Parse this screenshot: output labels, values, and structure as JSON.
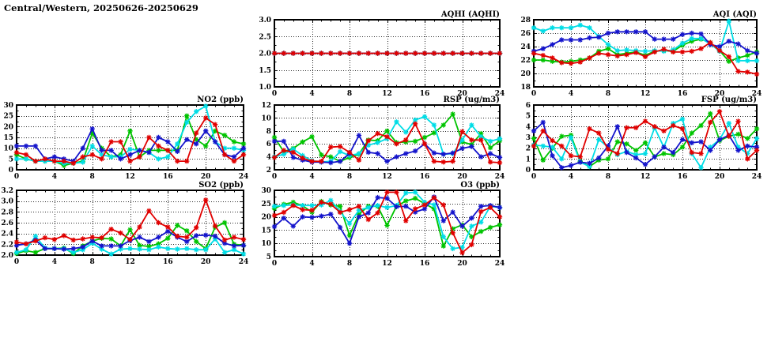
{
  "page": {
    "title": "Central/Western, 20250626-20250629"
  },
  "colors": {
    "red": "#e10000",
    "green": "#00c400",
    "blue": "#1414cc",
    "cyan": "#00dde6",
    "grid": "#2a2a2a",
    "text": "#000000",
    "background": "#ffffff"
  },
  "hours": [
    0,
    1,
    2,
    3,
    4,
    5,
    6,
    7,
    8,
    9,
    10,
    11,
    12,
    13,
    14,
    15,
    16,
    17,
    18,
    19,
    20,
    21,
    22,
    23,
    24
  ],
  "chart_data": [
    {
      "id": "aqhi",
      "type": "line",
      "title": "AQHI (AQHI)",
      "xlabel": "",
      "ylabel": "",
      "grid": true,
      "legend": "none",
      "marker": "asterisk",
      "xlim": [
        0,
        24
      ],
      "xticks": [
        0,
        4,
        8,
        12,
        16,
        20,
        24
      ],
      "xtick_minor_step": 1,
      "ylim": [
        1.0,
        3.0
      ],
      "ytick_step": 0.5,
      "ytick_decimals": 1,
      "series": [
        {
          "name": "green",
          "color": "green",
          "values": [
            2,
            2,
            2,
            2,
            2,
            2,
            2,
            2,
            2,
            2,
            2,
            2,
            2,
            2,
            2,
            2,
            2,
            2,
            2,
            2,
            2,
            2,
            2,
            2,
            2
          ]
        },
        {
          "name": "cyan",
          "color": "cyan",
          "values": [
            2,
            2,
            2,
            2,
            2,
            2,
            2,
            2,
            2,
            2,
            2,
            2,
            2,
            2,
            2,
            2,
            2,
            2,
            2,
            2,
            2,
            2,
            2,
            2,
            2
          ]
        },
        {
          "name": "blue",
          "color": "blue",
          "values": [
            2,
            2,
            2,
            2,
            2,
            2,
            2,
            2,
            2,
            2,
            2,
            2,
            2,
            2,
            2,
            2,
            2,
            2,
            2,
            2,
            2,
            2,
            2,
            2,
            2
          ]
        },
        {
          "name": "red",
          "color": "red",
          "values": [
            2,
            2,
            2,
            2,
            2,
            2,
            2,
            2,
            2,
            2,
            2,
            2,
            2,
            2,
            2,
            2,
            2,
            2,
            2,
            2,
            2,
            2,
            2,
            2,
            2
          ]
        }
      ]
    },
    {
      "id": "aqi",
      "type": "line",
      "title": "AQI (AQI)",
      "xlabel": "",
      "ylabel": "",
      "grid": true,
      "legend": "none",
      "marker": "asterisk",
      "xlim": [
        0,
        24
      ],
      "xticks": [
        0,
        4,
        8,
        12,
        16,
        20,
        24
      ],
      "xtick_minor_step": 1,
      "ylim": [
        18,
        28
      ],
      "ytick_step": 2,
      "ytick_decimals": 0,
      "series": [
        {
          "name": "green",
          "color": "green",
          "values": [
            22.0,
            22.0,
            21.8,
            21.7,
            21.8,
            22.0,
            22.3,
            23.3,
            23.7,
            22.8,
            23.0,
            23.2,
            22.7,
            23.3,
            23.4,
            23.3,
            24.2,
            24.8,
            25.1,
            24.6,
            23.4,
            21.8,
            22.3,
            22.7,
            23.2
          ]
        },
        {
          "name": "cyan",
          "color": "cyan",
          "values": [
            26.8,
            26.3,
            26.8,
            26.8,
            26.8,
            27.2,
            26.8,
            25.5,
            24.3,
            23.4,
            23.5,
            23.4,
            23.3,
            23.4,
            23.3,
            23.5,
            24.5,
            25.2,
            25.2,
            24.4,
            23.3,
            27.8,
            21.9,
            21.9,
            21.9
          ]
        },
        {
          "name": "blue",
          "color": "blue",
          "values": [
            23.3,
            23.7,
            24.3,
            25.0,
            25.0,
            25.0,
            25.3,
            25.4,
            26.0,
            26.2,
            26.2,
            26.2,
            26.2,
            25.1,
            25.1,
            25.1,
            25.8,
            26.0,
            25.9,
            24.3,
            24.0,
            24.8,
            24.4,
            23.4,
            23.0
          ]
        },
        {
          "name": "red",
          "color": "red",
          "values": [
            23.0,
            22.7,
            22.3,
            21.6,
            21.5,
            21.7,
            22.3,
            23.0,
            22.8,
            22.6,
            22.8,
            23.1,
            22.5,
            23.2,
            23.6,
            23.2,
            23.2,
            23.3,
            23.7,
            24.6,
            23.4,
            22.5,
            20.3,
            20.2,
            19.9
          ]
        }
      ]
    },
    {
      "id": "no2",
      "type": "line",
      "title": "NO2 (ppb)",
      "xlabel": "",
      "ylabel": "",
      "grid": true,
      "legend": "none",
      "marker": "asterisk",
      "xlim": [
        0,
        24
      ],
      "xticks": [
        0,
        4,
        8,
        12,
        16,
        20,
        24
      ],
      "xtick_minor_step": 1,
      "ylim": [
        0,
        30
      ],
      "ytick_step": 5,
      "ytick_decimals": 0,
      "series": [
        {
          "name": "green",
          "color": "green",
          "values": [
            7,
            5,
            4,
            4,
            4,
            2,
            3,
            4,
            17,
            10,
            6,
            7,
            18,
            6,
            9,
            9,
            9,
            9,
            25,
            14,
            11,
            18,
            16,
            13,
            12
          ]
        },
        {
          "name": "cyan",
          "color": "cyan",
          "values": [
            5,
            5,
            4,
            4,
            4,
            3,
            3,
            3.5,
            11,
            7,
            6,
            6,
            9.5,
            9,
            8,
            5,
            6,
            12,
            22,
            27,
            29.5,
            13,
            10,
            10,
            9
          ]
        },
        {
          "name": "blue",
          "color": "blue",
          "values": [
            11,
            11,
            11,
            5,
            6,
            5,
            4,
            10,
            19,
            9,
            9,
            5,
            7,
            9,
            8,
            15,
            13,
            8.5,
            14,
            12,
            18,
            13,
            7,
            6,
            10
          ]
        },
        {
          "name": "red",
          "color": "red",
          "values": [
            8,
            7,
            4,
            5,
            4,
            4,
            3,
            6,
            7,
            5,
            13,
            13,
            4,
            6,
            15,
            11,
            9,
            4,
            4,
            17,
            24,
            21,
            7,
            4,
            7
          ]
        }
      ]
    },
    {
      "id": "rsp",
      "type": "line",
      "title": "RSP (ug/m3)",
      "xlabel": "",
      "ylabel": "",
      "grid": true,
      "legend": "none",
      "marker": "asterisk",
      "xlim": [
        0,
        24
      ],
      "xticks": [
        0,
        4,
        8,
        12,
        16,
        20,
        24
      ],
      "xtick_minor_step": 1,
      "ylim": [
        2,
        12
      ],
      "ytick_step": 2,
      "ytick_decimals": 0,
      "series": [
        {
          "name": "green",
          "color": "green",
          "values": [
            7.0,
            4.8,
            5.3,
            6.3,
            7.1,
            4.3,
            4.0,
            3.3,
            3.9,
            4.4,
            6.6,
            6.5,
            8.0,
            6.2,
            6.3,
            6.4,
            7.0,
            7.7,
            8.9,
            10.6,
            6.3,
            5.9,
            7.6,
            5.4,
            6.5
          ]
        },
        {
          "name": "cyan",
          "color": "cyan",
          "values": [
            4.0,
            4.4,
            5.2,
            4.2,
            3.4,
            3.2,
            3.3,
            4.8,
            4.2,
            4.5,
            5.8,
            6.2,
            6.8,
            9.4,
            7.8,
            9.7,
            10.2,
            8.9,
            4.4,
            4.5,
            6.6,
            8.9,
            7.1,
            6.4,
            6.8
          ]
        },
        {
          "name": "blue",
          "color": "blue",
          "values": [
            6.4,
            6.4,
            3.9,
            3.5,
            3.2,
            3.2,
            3.1,
            3.3,
            4.5,
            7.3,
            4.7,
            4.5,
            3.3,
            4.0,
            4.5,
            4.9,
            6.0,
            4.6,
            4.4,
            4.6,
            5.3,
            5.6,
            4.0,
            4.5,
            3.9
          ]
        },
        {
          "name": "red",
          "color": "red",
          "values": [
            3.9,
            5.0,
            4.7,
            3.8,
            3.3,
            3.3,
            5.5,
            5.6,
            4.7,
            3.5,
            6.5,
            7.6,
            7.1,
            6.0,
            6.6,
            9.1,
            6.0,
            3.3,
            3.2,
            3.3,
            7.9,
            6.6,
            6.6,
            3.2,
            3.1
          ]
        }
      ]
    },
    {
      "id": "fsp",
      "type": "line",
      "title": "FSP (ug/m3)",
      "xlabel": "",
      "ylabel": "",
      "grid": true,
      "legend": "none",
      "marker": "asterisk",
      "xlim": [
        0,
        24
      ],
      "xticks": [
        0,
        4,
        8,
        12,
        16,
        20,
        24
      ],
      "xtick_minor_step": 1,
      "ylim": [
        0,
        6
      ],
      "ytick_step": 1,
      "ytick_decimals": 0,
      "series": [
        {
          "name": "green",
          "color": "green",
          "values": [
            2.9,
            0.9,
            2.0,
            3.1,
            3.2,
            0.8,
            0.3,
            0.9,
            1.0,
            2.6,
            2.4,
            1.8,
            2.5,
            1.2,
            1.5,
            1.4,
            2.1,
            3.4,
            4.1,
            5.2,
            2.7,
            3.1,
            3.3,
            2.9,
            3.8
          ]
        },
        {
          "name": "cyan",
          "color": "cyan",
          "values": [
            2.3,
            2.2,
            2.1,
            1.0,
            3.0,
            0.7,
            0.3,
            2.8,
            2.1,
            1.4,
            1.7,
            1.4,
            1.5,
            3.9,
            2.1,
            4.3,
            4.7,
            1.5,
            0.2,
            2.1,
            2.8,
            4.3,
            2.1,
            1.5,
            2.9
          ]
        },
        {
          "name": "blue",
          "color": "blue",
          "values": [
            3.6,
            4.4,
            1.3,
            0.2,
            0.4,
            0.7,
            0.6,
            1.1,
            2.2,
            4.0,
            1.6,
            1.1,
            0.5,
            1.2,
            2.1,
            1.6,
            2.8,
            2.5,
            2.6,
            1.8,
            2.8,
            3.2,
            1.8,
            2.2,
            2.1
          ]
        },
        {
          "name": "red",
          "color": "red",
          "values": [
            2.2,
            3.6,
            2.7,
            2.2,
            1.3,
            1.2,
            3.8,
            3.4,
            1.9,
            1.5,
            3.9,
            3.9,
            4.5,
            4.0,
            3.6,
            4.1,
            3.8,
            1.6,
            1.5,
            4.4,
            5.4,
            3.1,
            4.5,
            1.0,
            1.8
          ]
        }
      ]
    },
    {
      "id": "so2",
      "type": "line",
      "title": "SO2 (ppb)",
      "xlabel": "",
      "ylabel": "",
      "grid": true,
      "legend": "none",
      "marker": "asterisk",
      "xlim": [
        0,
        24
      ],
      "xticks": [
        0,
        4,
        8,
        12,
        16,
        20,
        24
      ],
      "xtick_minor_step": 1,
      "ylim": [
        2.0,
        3.2
      ],
      "ytick_step": 0.2,
      "ytick_decimals": 1,
      "series": [
        {
          "name": "green",
          "color": "green",
          "values": [
            2.03,
            2.08,
            2.05,
            2.12,
            2.12,
            2.13,
            2.03,
            2.17,
            2.26,
            2.31,
            2.3,
            2.17,
            2.47,
            2.18,
            2.16,
            2.21,
            2.31,
            2.55,
            2.45,
            2.25,
            2.12,
            2.52,
            2.6,
            2.2,
            2.18
          ]
        },
        {
          "name": "cyan",
          "color": "cyan",
          "values": [
            2.05,
            2.1,
            2.35,
            2.13,
            2.12,
            2.12,
            2.05,
            2.1,
            2.22,
            2.11,
            2.02,
            2.11,
            2.12,
            2.11,
            2.1,
            2.15,
            2.12,
            2.11,
            2.12,
            2.1,
            2.1,
            2.3,
            2.05,
            2.1,
            2.02
          ]
        },
        {
          "name": "blue",
          "color": "blue",
          "values": [
            2.18,
            2.21,
            2.28,
            2.12,
            2.12,
            2.11,
            2.12,
            2.15,
            2.26,
            2.17,
            2.17,
            2.17,
            2.27,
            2.33,
            2.25,
            2.33,
            2.44,
            2.33,
            2.25,
            2.36,
            2.37,
            2.35,
            2.22,
            2.17,
            2.18
          ]
        },
        {
          "name": "red",
          "color": "red",
          "values": [
            2.24,
            2.21,
            2.26,
            2.32,
            2.29,
            2.36,
            2.28,
            2.3,
            2.33,
            2.32,
            2.48,
            2.41,
            2.29,
            2.52,
            2.82,
            2.6,
            2.52,
            2.35,
            2.33,
            2.51,
            3.02,
            2.54,
            2.28,
            2.33,
            2.29
          ]
        }
      ]
    },
    {
      "id": "o3",
      "type": "line",
      "title": "O3 (ppb)",
      "xlabel": "",
      "ylabel": "",
      "grid": true,
      "legend": "none",
      "marker": "asterisk",
      "xlim": [
        0,
        24
      ],
      "xticks": [
        0,
        4,
        8,
        12,
        16,
        20,
        24
      ],
      "xtick_minor_step": 1,
      "ylim": [
        5,
        30
      ],
      "ytick_step": 5,
      "ytick_decimals": 0,
      "series": [
        {
          "name": "green",
          "color": "green",
          "values": [
            23.2,
            24.7,
            25.5,
            24.2,
            21.8,
            25.8,
            24.5,
            24.0,
            13.0,
            21.0,
            24.0,
            24.0,
            16.8,
            24.0,
            26.0,
            27.0,
            25.0,
            23.0,
            9.0,
            15.5,
            17.0,
            12.5,
            14.5,
            16.0,
            17.0
          ]
        },
        {
          "name": "cyan",
          "color": "cyan",
          "values": [
            24.0,
            24.3,
            24.5,
            24.3,
            24.3,
            24.5,
            26.2,
            22.0,
            17.5,
            22.5,
            23.5,
            24.3,
            23.5,
            24.3,
            29.0,
            29.3,
            25.5,
            24.5,
            12.5,
            8.0,
            8.5,
            16.5,
            18.0,
            24.0,
            23.5
          ]
        },
        {
          "name": "blue",
          "color": "blue",
          "values": [
            16.3,
            19.5,
            16.5,
            20.0,
            19.8,
            20.3,
            21.0,
            16.0,
            10.0,
            20.0,
            21.5,
            27.3,
            27.0,
            23.8,
            24.0,
            21.8,
            23.0,
            27.5,
            18.5,
            21.8,
            16.5,
            19.5,
            24.0,
            24.3,
            23.5
          ]
        },
        {
          "name": "red",
          "color": "red",
          "values": [
            20.5,
            21.7,
            24.3,
            22.7,
            22.5,
            25.5,
            24.8,
            21.7,
            22.7,
            24.0,
            19.0,
            21.5,
            29.3,
            29.3,
            18.5,
            23.0,
            24.5,
            27.2,
            24.5,
            14.0,
            6.5,
            9.5,
            22.0,
            23.5,
            20.0
          ]
        }
      ]
    }
  ]
}
